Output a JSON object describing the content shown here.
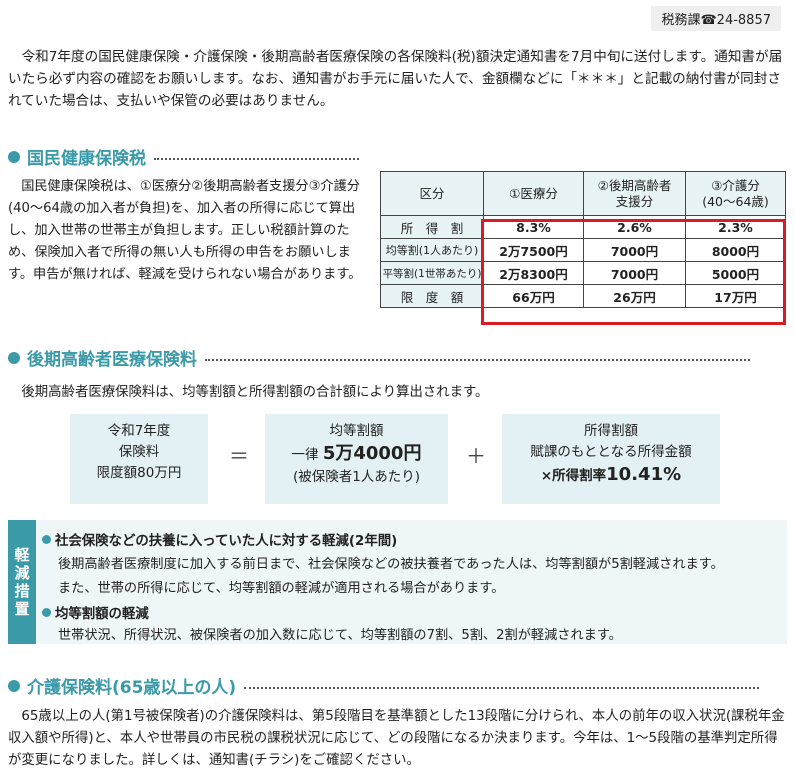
{
  "contact": "税務課☎24-8857",
  "intro": "令和7年度の国民健康保険・介護保険・後期高齢者医療保険の各保険料(税)額決定通知書を7月中旬に送付します。通知書が届いたら必ず内容の確認をお願いします。なお、通知書がお手元に届いた人で、金額欄などに「＊＊＊」と記載の納付書が同封されていた場合は、支払いや保管の必要はありません。",
  "nhi": {
    "heading": "国民健康保険税",
    "text": "国民健康保険税は、①医療分②後期高齢者支援分③介護分(40～64歳の加入者が負担)を、加入者の所得に応じて算出し、加入世帯の世帯主が負担します。正しい税額計算のため、保険加入者で所得の無い人も所得の申告をお願いします。申告が無ければ、軽減を受けられない場合があります。",
    "table": {
      "headers": [
        "区分",
        "①医療分",
        "②後期高齢者\n支援分",
        "③介護分\n(40～64歳)"
      ],
      "rows": [
        {
          "label": "所　得　割",
          "values": [
            "8.3%",
            "2.6%",
            "2.3%"
          ]
        },
        {
          "label": "均等割(1人あたり)",
          "values": [
            "2万7500円",
            "7000円",
            "8000円"
          ]
        },
        {
          "label": "平等割(1世帯あたり)",
          "values": [
            "2万8300円",
            "7000円",
            "5000円"
          ]
        },
        {
          "label": "限　度　額",
          "values": [
            "66万円",
            "26万円",
            "17万円"
          ]
        }
      ]
    }
  },
  "senior": {
    "heading": "後期高齢者医療保険料",
    "text": "後期高齢者医療保険料は、均等割額と所得割額の合計額により算出されます。",
    "box1": {
      "l1": "令和7年度",
      "l2": "保険料",
      "l3": "限度額80万円"
    },
    "eq": "＝",
    "box2": {
      "l1": "均等割額",
      "l2a": "一律 ",
      "l2b": "5万4000円",
      "l3": "(被保険者1人あたり)"
    },
    "plus": "＋",
    "box3": {
      "l1": "所得割額",
      "l2": "賦課のもととなる所得金額",
      "l3a": "×所得割率",
      "l3b": "10.41%"
    }
  },
  "reduction": {
    "side": [
      "軽",
      "減",
      "措",
      "置"
    ],
    "item1_title": "社会保険などの扶養に入っていた人に対する軽減(2年間)",
    "item1_line1": "後期高齢者医療制度に加入する前日まで、社会保険などの被扶養者であった人は、均等割額が5割軽減されます。",
    "item1_line2": "また、世帯の所得に応じて、均等割額の軽減が適用される場合があります。",
    "item2_title": "均等割額の軽減",
    "item2_line1": "世帯状況、所得状況、被保険者の加入数に応じて、均等割額の7割、5割、2割が軽減されます。"
  },
  "kaigo": {
    "heading": "介護保険料(65歳以上の人)",
    "text": "65歳以上の人(第1号被保険者)の介護保険料は、第5段階目を基準額とした13段階に分けられ、本人の前年の収入状況(課税年金収入額や所得)と、本人や世帯員の市民税の課税状況に応じて、どの段階になるか決まります。今年は、1～5段階の基準判定所得が変更になりました。詳しくは、通知書(チラシ)をご確認ください。"
  }
}
